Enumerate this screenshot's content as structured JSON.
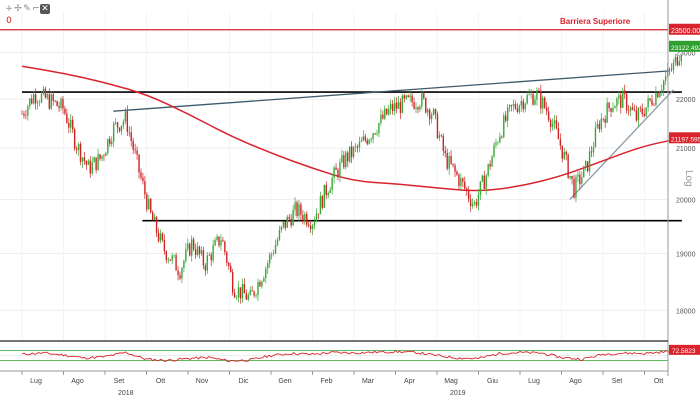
{
  "toolbar": {
    "icons": [
      "crosshair-icon",
      "pan-icon",
      "draw-icon",
      "tool-icon",
      "close-icon"
    ],
    "glyphs": [
      "+",
      "✢",
      "✎",
      "⌐",
      "✕"
    ],
    "zero_label": "0"
  },
  "chart_data": {
    "type": "candlestick",
    "scale": "log",
    "yscale_label": "Log",
    "ylim": [
      17500,
      23900
    ],
    "y_ticks": [
      18000,
      19000,
      20000,
      21000,
      22000,
      23000
    ],
    "y_tick_labels": [
      "18000",
      "19000",
      "20000",
      "21000",
      "22000",
      "23000"
    ],
    "x_months": [
      {
        "label": "Lug",
        "year": "2018"
      },
      {
        "label": "Ago",
        "year": "2018"
      },
      {
        "label": "Set",
        "year": "2018"
      },
      {
        "label": "Ott",
        "year": "2018"
      },
      {
        "label": "Nov",
        "year": "2018"
      },
      {
        "label": "Dic",
        "year": "2018"
      },
      {
        "label": "Gen",
        "year": "2019"
      },
      {
        "label": "Feb",
        "year": "2019"
      },
      {
        "label": "Mar",
        "year": "2019"
      },
      {
        "label": "Apr",
        "year": "2019"
      },
      {
        "label": "Mag",
        "year": "2019"
      },
      {
        "label": "Giu",
        "year": "2019"
      },
      {
        "label": "Lug",
        "year": "2019"
      },
      {
        "label": "Ago",
        "year": "2019"
      },
      {
        "label": "Set",
        "year": "2019"
      },
      {
        "label": "Ott",
        "year": "2019"
      }
    ],
    "x_years": [
      "2018",
      "2019"
    ],
    "barrier": {
      "value": 23500,
      "label": "23500.00",
      "name": "Barriera Superiore",
      "color": "#d9232d"
    },
    "last_price": {
      "value": 23122.4922,
      "label": "23122.4922",
      "color": "#2ea02e"
    },
    "ma_last": {
      "value": 21197.5957,
      "label": "21197.5957",
      "color": "#d9232d"
    },
    "support_lines": [
      {
        "value": 22150,
        "from_month": 0,
        "to_month": 15.9
      },
      {
        "value": 19600,
        "from_month": 2.9,
        "to_month": 15.9
      }
    ],
    "trendlines": [
      {
        "from": [
          2.2,
          21750
        ],
        "to": [
          15.6,
          22600
        ],
        "color": "#3d5a6c"
      },
      {
        "from": [
          13.2,
          20000
        ],
        "to": [
          15.7,
          22200
        ],
        "color": "#8a9aa6"
      }
    ],
    "moving_average": [
      [
        0,
        22700
      ],
      [
        1,
        22550
      ],
      [
        2,
        22350
      ],
      [
        3,
        22100
      ],
      [
        4,
        21700
      ],
      [
        5,
        21250
      ],
      [
        6,
        20900
      ],
      [
        7,
        20600
      ],
      [
        8,
        20350
      ],
      [
        9,
        20300
      ],
      [
        10,
        20220
      ],
      [
        11,
        20150
      ],
      [
        12,
        20250
      ],
      [
        13,
        20450
      ],
      [
        14,
        20750
      ],
      [
        15,
        21050
      ],
      [
        15.9,
        21197.5957
      ]
    ],
    "price": [
      [
        0,
        21700
      ],
      [
        0.3,
        22100
      ],
      [
        0.6,
        22000
      ],
      [
        1,
        21800
      ],
      [
        1.3,
        21100
      ],
      [
        1.6,
        20600
      ],
      [
        1.9,
        20800
      ],
      [
        2.2,
        21400
      ],
      [
        2.5,
        21600
      ],
      [
        2.8,
        20600
      ],
      [
        3.1,
        19700
      ],
      [
        3.4,
        19100
      ],
      [
        3.8,
        18700
      ],
      [
        4.1,
        19200
      ],
      [
        4.4,
        18800
      ],
      [
        4.8,
        19300
      ],
      [
        5.1,
        18400
      ],
      [
        5.5,
        18200
      ],
      [
        5.9,
        18800
      ],
      [
        6.3,
        19500
      ],
      [
        6.6,
        19800
      ],
      [
        7,
        19600
      ],
      [
        7.4,
        20300
      ],
      [
        7.8,
        20800
      ],
      [
        8.1,
        21000
      ],
      [
        8.5,
        21400
      ],
      [
        8.9,
        21800
      ],
      [
        9.2,
        21900
      ],
      [
        9.6,
        22000
      ],
      [
        9.9,
        21700
      ],
      [
        10.2,
        20800
      ],
      [
        10.6,
        20300
      ],
      [
        10.9,
        19900
      ],
      [
        11.2,
        20500
      ],
      [
        11.5,
        21300
      ],
      [
        11.8,
        21800
      ],
      [
        12.1,
        22000
      ],
      [
        12.4,
        22100
      ],
      [
        12.7,
        21700
      ],
      [
        13,
        21000
      ],
      [
        13.3,
        20200
      ],
      [
        13.6,
        20600
      ],
      [
        13.9,
        21500
      ],
      [
        14.2,
        21900
      ],
      [
        14.5,
        22000
      ],
      [
        14.8,
        21600
      ],
      [
        15.1,
        21900
      ],
      [
        15.4,
        22300
      ],
      [
        15.7,
        22700
      ],
      [
        15.9,
        23122.4922
      ]
    ],
    "indicator": {
      "label": "72.5823",
      "color": "#d9232d",
      "grid_color": "#2ea02e",
      "values": [
        [
          0,
          55
        ],
        [
          0.5,
          60
        ],
        [
          1,
          52
        ],
        [
          1.5,
          40
        ],
        [
          2,
          45
        ],
        [
          2.5,
          62
        ],
        [
          3,
          35
        ],
        [
          3.5,
          30
        ],
        [
          4,
          38
        ],
        [
          4.5,
          42
        ],
        [
          5,
          28
        ],
        [
          5.5,
          32
        ],
        [
          6,
          50
        ],
        [
          6.5,
          58
        ],
        [
          7,
          55
        ],
        [
          7.5,
          62
        ],
        [
          8,
          60
        ],
        [
          8.5,
          63
        ],
        [
          9,
          65
        ],
        [
          9.5,
          62
        ],
        [
          10,
          50
        ],
        [
          10.5,
          40
        ],
        [
          11,
          38
        ],
        [
          11.5,
          58
        ],
        [
          12,
          62
        ],
        [
          12.5,
          60
        ],
        [
          13,
          42
        ],
        [
          13.5,
          35
        ],
        [
          14,
          55
        ],
        [
          14.5,
          60
        ],
        [
          15,
          58
        ],
        [
          15.5,
          65
        ],
        [
          15.9,
          72.5823
        ]
      ]
    }
  }
}
